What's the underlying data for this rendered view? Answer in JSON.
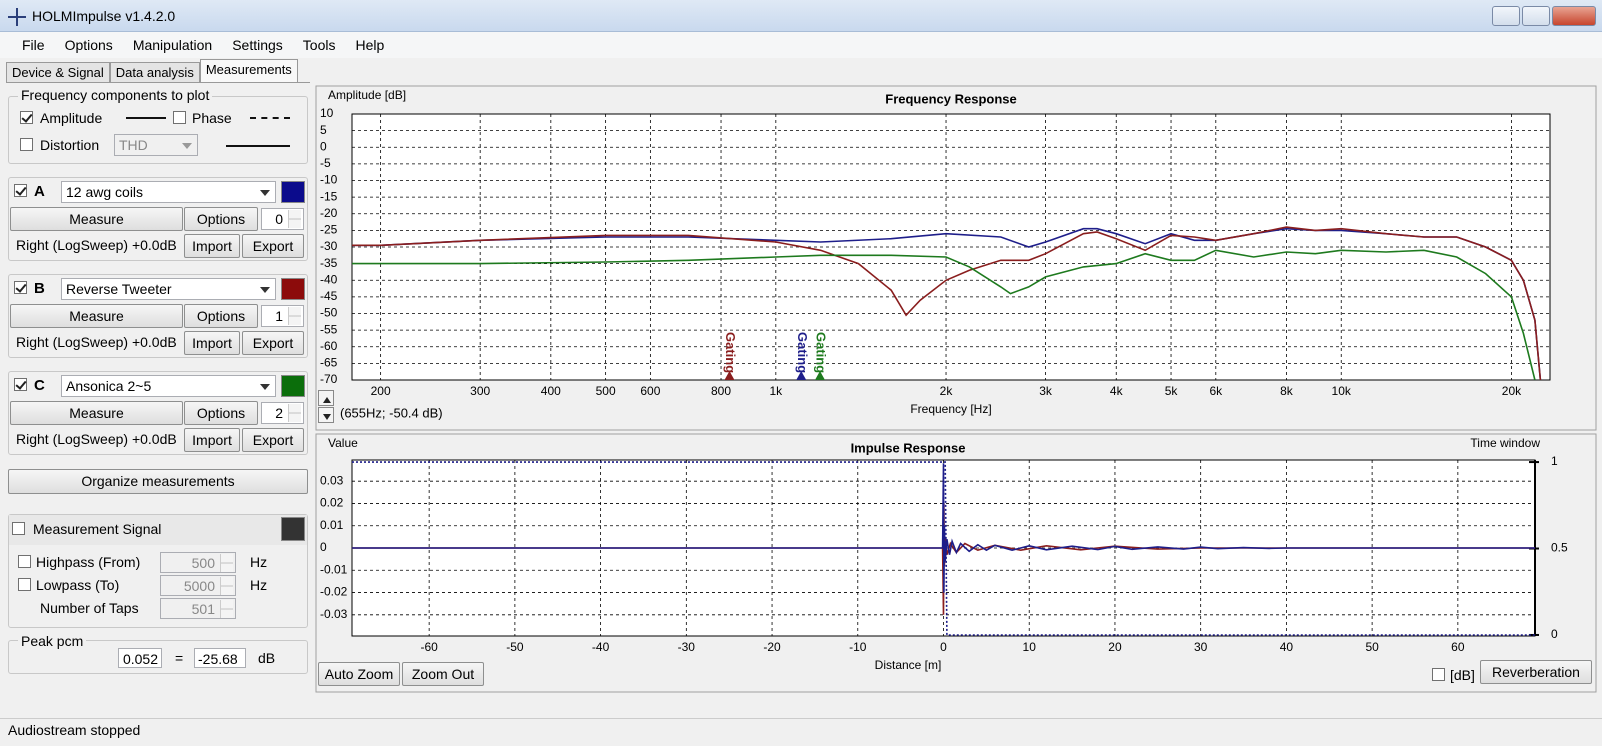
{
  "window": {
    "title": "HOLMImpulse  v1.4.2.0"
  },
  "menu": [
    "File",
    "Options",
    "Manipulation",
    "Settings",
    "Tools",
    "Help"
  ],
  "tabs": [
    {
      "label": "Device & Signal",
      "active": false
    },
    {
      "label": "Data analysis",
      "active": false
    },
    {
      "label": "Measurements",
      "active": true
    }
  ],
  "components": {
    "title": "Frequency components to plot",
    "amplitude": {
      "label": "Amplitude",
      "checked": true
    },
    "phase": {
      "label": "Phase",
      "checked": false
    },
    "distortion": {
      "label": "Distortion",
      "checked": false,
      "type": "THD"
    }
  },
  "measurements": [
    {
      "letter": "A",
      "checked": true,
      "name": "12 awg coils",
      "color": "#0b0b8c",
      "measure": "Measure",
      "options": "Options",
      "index": 0,
      "info": "Right (LogSweep) +0.0dB",
      "import": "Import",
      "export": "Export"
    },
    {
      "letter": "B",
      "checked": true,
      "name": "Reverse Tweeter",
      "color": "#8c0b0b",
      "measure": "Measure",
      "options": "Options",
      "index": 1,
      "info": "Right (LogSweep) +0.0dB",
      "import": "Import",
      "export": "Export"
    },
    {
      "letter": "C",
      "checked": true,
      "name": "Ansonica 2~5",
      "color": "#0b6e0b",
      "measure": "Measure",
      "options": "Options",
      "index": 2,
      "info": "Right (LogSweep) +0.0dB",
      "import": "Import",
      "export": "Export"
    }
  ],
  "organize": "Organize measurements",
  "signal": {
    "title": "Measurement Signal",
    "checked": false,
    "color": "#333333",
    "highpass": {
      "label": "Highpass (From)",
      "checked": false,
      "value": 500,
      "unit": "Hz"
    },
    "lowpass": {
      "label": "Lowpass (To)",
      "checked": false,
      "value": 5000,
      "unit": "Hz"
    },
    "taps": {
      "label": "Number of Taps",
      "value": 501
    }
  },
  "peak": {
    "title": "Peak pcm",
    "pcm": 0.052,
    "equals": "=",
    "db": -25.68,
    "unit": "dB"
  },
  "chart_data": [
    {
      "type": "line",
      "title": "Frequency Response",
      "ylabel": "Amplitude [dB]",
      "xlabel": "Frequency [Hz]",
      "cursor": "(655Hz; -50.4 dB)",
      "log_x": true,
      "grid": true,
      "xlim": [
        178,
        23400
      ],
      "ylim": [
        -70,
        10
      ],
      "xticks": [
        200,
        300,
        400,
        500,
        600,
        800,
        {
          "value": 1000,
          "label": "1k"
        },
        {
          "value": 2000,
          "label": "2k"
        },
        {
          "value": 3000,
          "label": "3k"
        },
        {
          "value": 4000,
          "label": "4k"
        },
        {
          "value": 5000,
          "label": "5k"
        },
        {
          "value": 6000,
          "label": "6k"
        },
        {
          "value": 8000,
          "label": "8k"
        },
        {
          "value": 10000,
          "label": "10k"
        },
        {
          "value": 20000,
          "label": "20k"
        }
      ],
      "yticks": [
        10,
        5,
        0,
        -5,
        -10,
        -15,
        -20,
        -25,
        -30,
        -35,
        -40,
        -45,
        -50,
        -55,
        -60,
        -65,
        -70
      ],
      "series": [
        {
          "color": "#1e1e8a",
          "x": [
            178,
            200,
            300,
            500,
            700,
            1000,
            1200,
            1600,
            2000,
            2500,
            2800,
            3000,
            3500,
            3700,
            4000,
            4500,
            5000,
            5500,
            6000,
            7000,
            8000,
            9000,
            10000,
            12000,
            14000,
            16000,
            18000,
            20000,
            21000,
            22000,
            22500
          ],
          "values": [
            -29.5,
            -29.5,
            -28,
            -27,
            -27,
            -28,
            -28.5,
            -27.5,
            -26,
            -27,
            -30,
            -28.5,
            -24.5,
            -24.5,
            -26,
            -29,
            -26,
            -28,
            -28,
            -26,
            -24.5,
            -25,
            -25,
            -26,
            -27,
            -27,
            -30,
            -34,
            -40,
            -52,
            -70
          ]
        },
        {
          "color": "#8a1e1e",
          "x": [
            178,
            200,
            300,
            500,
            700,
            1000,
            1200,
            1400,
            1600,
            1700,
            1800,
            2000,
            2200,
            2500,
            2800,
            3000,
            3500,
            3700,
            4000,
            4500,
            5000,
            5500,
            6000,
            7000,
            8000,
            9000,
            10000,
            12000,
            14000,
            16000,
            18000,
            20000,
            21000,
            22000,
            22500
          ],
          "values": [
            -29.5,
            -29.5,
            -28,
            -26.5,
            -26.5,
            -28.5,
            -31,
            -35,
            -43,
            -50.5,
            -46,
            -40,
            -37,
            -34,
            -34,
            -32,
            -26,
            -25.5,
            -27.5,
            -31,
            -26.5,
            -27,
            -28,
            -26,
            -24,
            -25,
            -24.5,
            -26,
            -27,
            -27,
            -30,
            -34,
            -40,
            -52,
            -70
          ]
        },
        {
          "color": "#1e7a1e",
          "x": [
            178,
            200,
            300,
            500,
            700,
            1000,
            1200,
            1600,
            2000,
            2200,
            2500,
            2600,
            2800,
            3000,
            3500,
            4000,
            4500,
            5000,
            5500,
            6000,
            7000,
            8000,
            9000,
            10000,
            12000,
            14000,
            16000,
            18000,
            20000,
            21000,
            22000
          ],
          "values": [
            -35,
            -35,
            -35,
            -34.5,
            -34,
            -33,
            -32.5,
            -32.5,
            -33,
            -36,
            -42,
            -44,
            -42,
            -39,
            -36,
            -35,
            -32,
            -34,
            -34,
            -31,
            -33,
            -31.5,
            -32,
            -31,
            -31.5,
            -31,
            -33,
            -38,
            -45,
            -56,
            -70
          ]
        }
      ],
      "annotations": [
        {
          "text": "Gating",
          "x": 828,
          "color": "#8a1e1e"
        },
        {
          "text": "Gating",
          "x": 1109,
          "color": "#1e1e8a"
        },
        {
          "text": "Gating",
          "x": 1197,
          "color": "#1e7a1e"
        }
      ]
    },
    {
      "type": "line",
      "title": "Impulse Response",
      "ylabel": "Value",
      "y2label": "Time window",
      "xlabel": "Distance [m]",
      "grid": true,
      "xlim": [
        -69,
        69
      ],
      "ylim": [
        -0.0395,
        0.0395
      ],
      "y2lim": [
        -0.006,
        1.012
      ],
      "xticks": [
        -60,
        -50,
        -40,
        -30,
        -20,
        -10,
        0,
        10,
        20,
        30,
        40,
        50,
        60
      ],
      "yticks": [
        0.03,
        0.02,
        0.01,
        0,
        -0.01,
        -0.02,
        -0.03
      ],
      "y2ticks": [
        1,
        0.5,
        0
      ],
      "series": [
        {
          "color": "#8a1e1e",
          "x": [
            -69,
            -0.1,
            0,
            0.05,
            0.1,
            0.2,
            0.4,
            0.8,
            1.5,
            2.5,
            4,
            6,
            9,
            12,
            16,
            20,
            25,
            30,
            69
          ],
          "values": [
            0,
            0,
            -0.03,
            0.02,
            -0.008,
            0.005,
            -0.003,
            0.002,
            -0.002,
            0.002,
            -0.001,
            0.0012,
            -0.001,
            0.001,
            -0.0008,
            0.0008,
            -0.0005,
            0,
            0
          ]
        },
        {
          "color": "#1e1e8a",
          "x": [
            -69,
            -0.1,
            0,
            0.05,
            0.1,
            0.2,
            0.4,
            0.7,
            1,
            1.5,
            2,
            3,
            4,
            5,
            6,
            8,
            10,
            12,
            15,
            18,
            20,
            22,
            25,
            28,
            30,
            32,
            35,
            38,
            40,
            69
          ],
          "values": [
            0,
            0,
            0.038,
            -0.02,
            0.01,
            -0.006,
            0.004,
            -0.003,
            0.003,
            -0.002,
            0.002,
            -0.0015,
            0.0015,
            -0.001,
            0.0012,
            -0.001,
            0.001,
            -0.0008,
            0.0008,
            -0.0007,
            0.0007,
            -0.0006,
            0.0005,
            -0.0005,
            0.0004,
            -0.0003,
            0.0002,
            -0.0002,
            0,
            0
          ]
        },
        {
          "color": "#1e1e8a",
          "axis": "y2",
          "dash": true,
          "x": [
            -69,
            0.2,
            0.4,
            69
          ],
          "values": [
            1,
            1,
            0,
            0
          ]
        }
      ]
    }
  ],
  "buttons": {
    "auto_zoom": "Auto Zoom",
    "zoom_out": "Zoom Out",
    "db": "[dB]",
    "db_checked": false,
    "reverberation": "Reverberation"
  },
  "status": "Audiostream stopped"
}
